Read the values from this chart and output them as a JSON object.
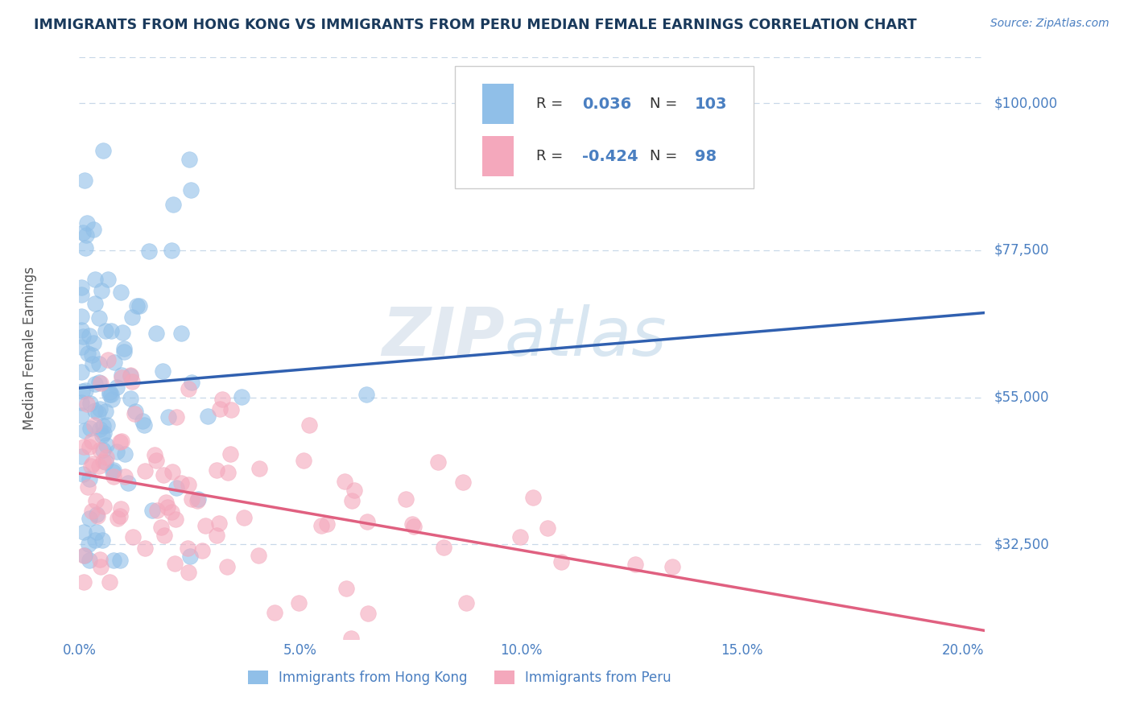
{
  "title": "IMMIGRANTS FROM HONG KONG VS IMMIGRANTS FROM PERU MEDIAN FEMALE EARNINGS CORRELATION CHART",
  "source_text": "Source: ZipAtlas.com",
  "ylabel": "Median Female Earnings",
  "xlim": [
    0.0,
    0.205
  ],
  "ylim": [
    18000,
    107000
  ],
  "yticks": [
    32500,
    55000,
    77500,
    100000
  ],
  "ytick_labels": [
    "$32,500",
    "$55,000",
    "$77,500",
    "$100,000"
  ],
  "xticks": [
    0.0,
    0.05,
    0.1,
    0.15,
    0.2
  ],
  "xtick_labels": [
    "0.0%",
    "5.0%",
    "10.0%",
    "15.0%",
    "20.0%"
  ],
  "hk_color": "#90bfe8",
  "peru_color": "#f4a8bc",
  "hk_line_color": "#3060b0",
  "peru_line_color": "#e06080",
  "hk_R": 0.036,
  "hk_N": 103,
  "peru_R": -0.424,
  "peru_N": 98,
  "title_color": "#1a3a5c",
  "axis_label_color": "#555555",
  "tick_color": "#4a7fc1",
  "grid_color": "#c8d8e8",
  "watermark_text": "ZIP",
  "watermark_text2": "atlas",
  "legend_label_hk": "Immigrants from Hong Kong",
  "legend_label_peru": "Immigrants from Peru",
  "background_color": "#ffffff"
}
